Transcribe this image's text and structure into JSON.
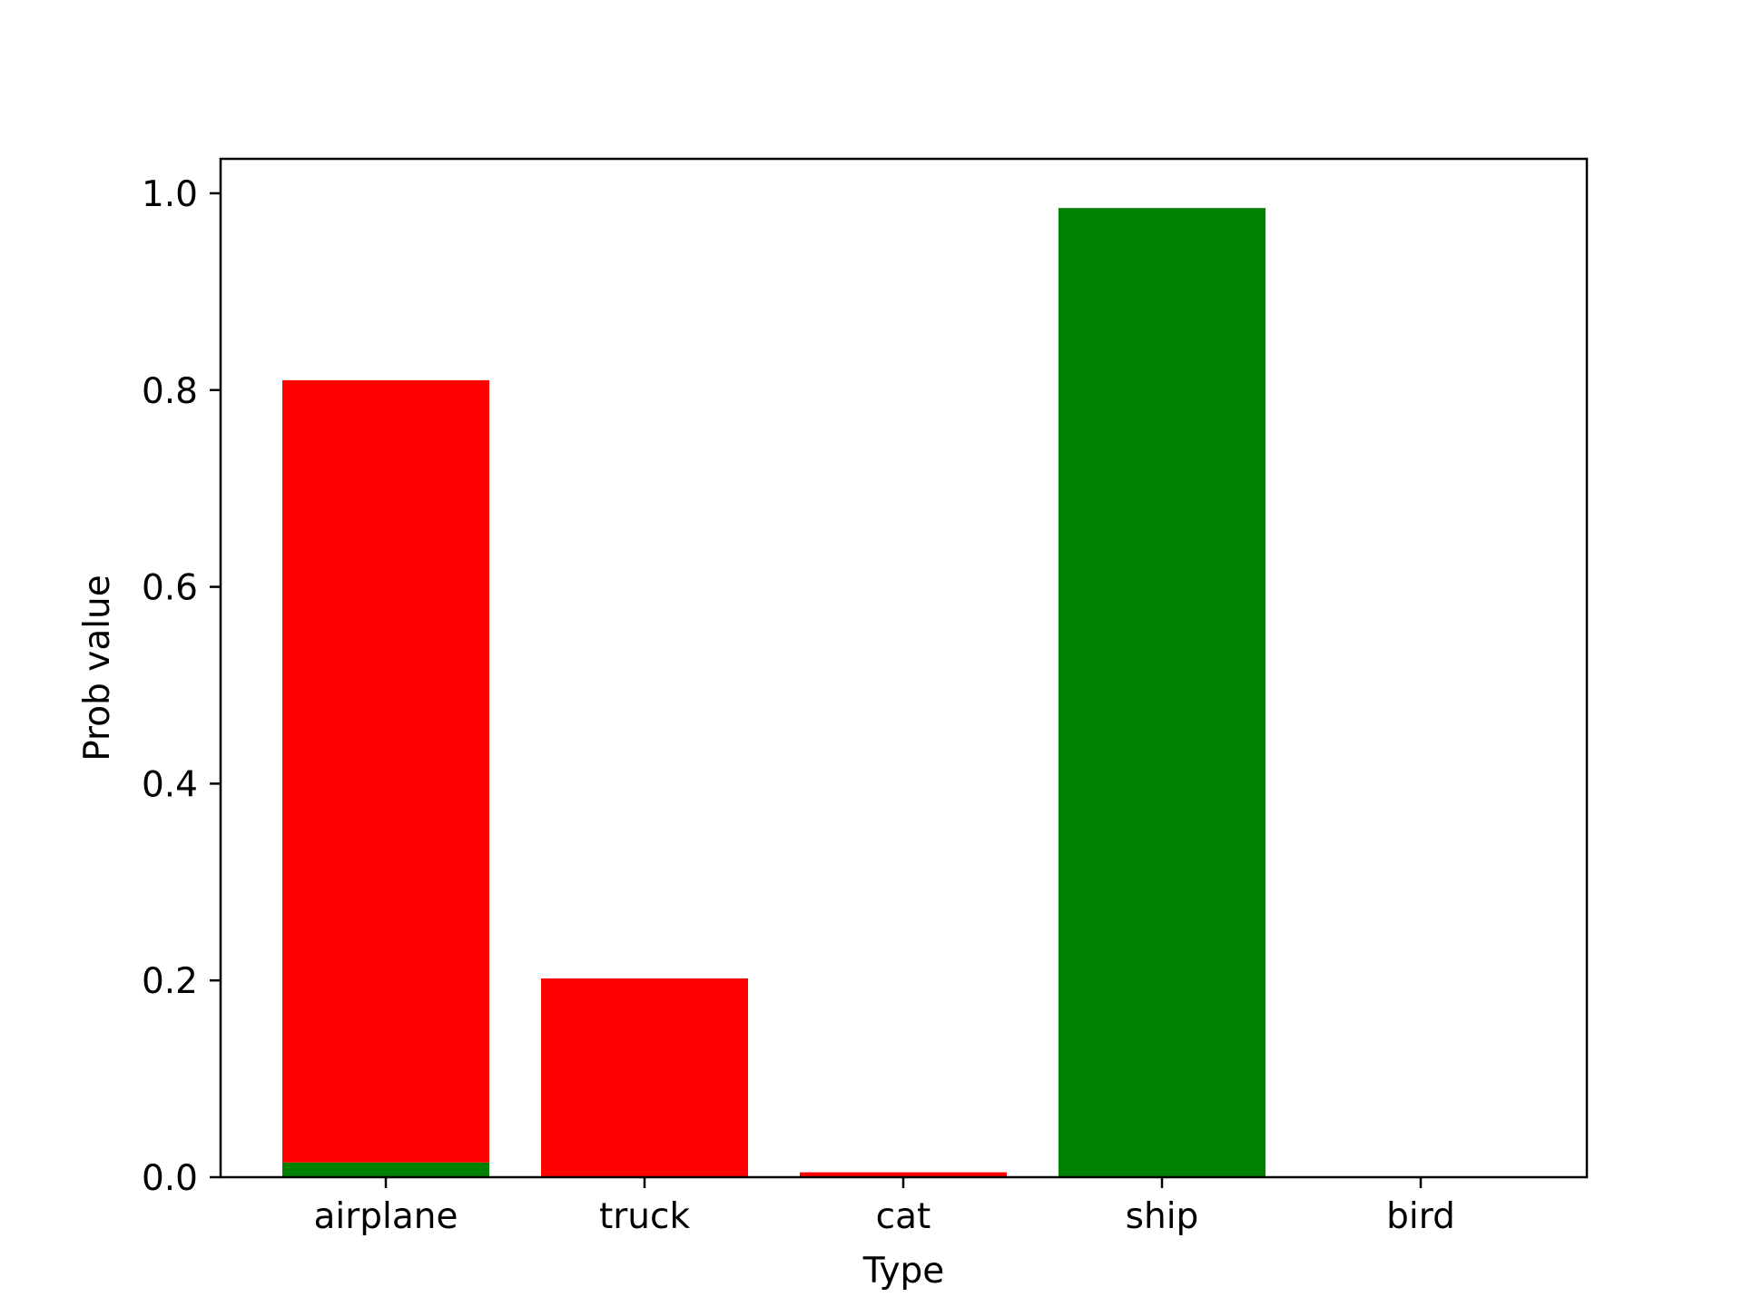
{
  "chart_data": {
    "type": "bar",
    "title": "",
    "xlabel": "Type",
    "ylabel": "Prob value",
    "categories": [
      "airplane",
      "truck",
      "cat",
      "ship",
      "bird"
    ],
    "series": [
      {
        "values": [
          0.015,
          0.0,
          0.0,
          0.985,
          0.0
        ],
        "color": "#008000"
      },
      {
        "values": [
          0.795,
          0.202,
          0.005,
          0.0,
          0.0
        ],
        "color": "#ff0000"
      }
    ],
    "ylim": [
      0,
      1.035
    ],
    "yticks": [
      "0.0",
      "0.2",
      "0.4",
      "0.6",
      "0.8",
      "1.0"
    ],
    "grid": false,
    "legend": false
  }
}
